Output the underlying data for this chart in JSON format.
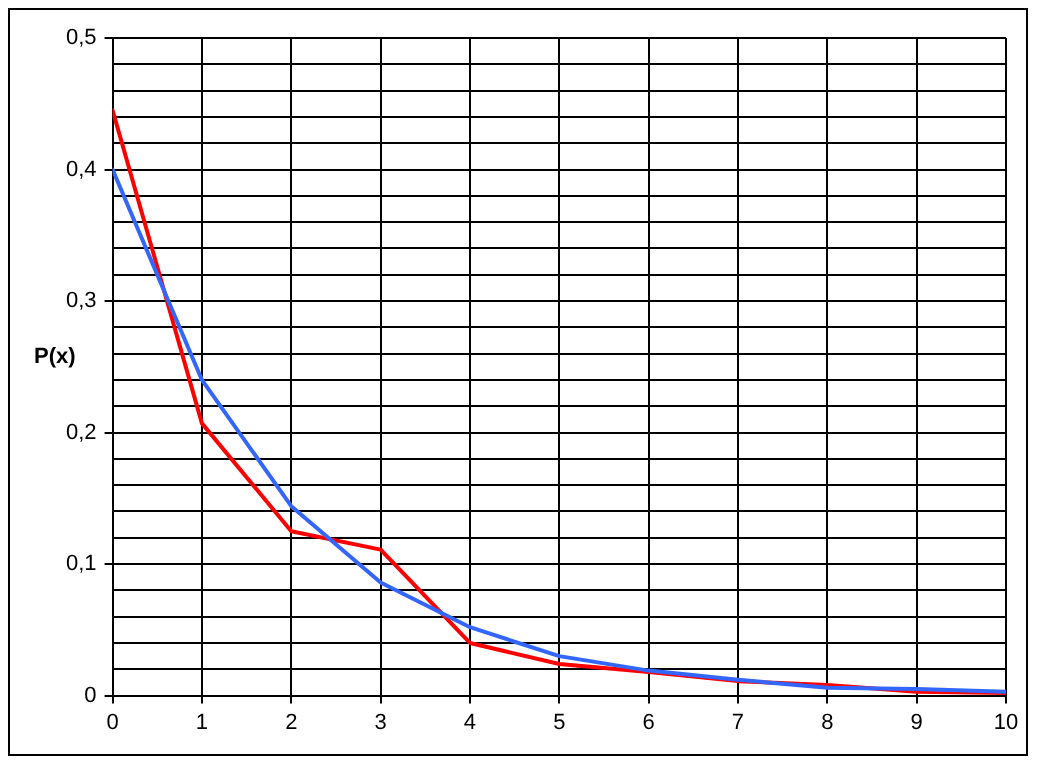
{
  "chart_data": {
    "type": "line",
    "ylabel": "P(x)",
    "x": [
      0,
      1,
      2,
      3,
      4,
      5,
      6,
      7,
      8,
      9,
      10
    ],
    "series": [
      {
        "color": "#3366ff",
        "values": [
          0.4,
          0.24,
          0.144,
          0.086,
          0.052,
          0.03,
          0.019,
          0.012,
          0.006,
          0.005,
          0.003
        ]
      },
      {
        "color": "#ff0000",
        "values": [
          0.445,
          0.207,
          0.125,
          0.111,
          0.04,
          0.024,
          0.018,
          0.011,
          0.008,
          0.003,
          0.002
        ]
      }
    ],
    "xlim": [
      0,
      10
    ],
    "xticks": [
      0,
      1,
      2,
      3,
      4,
      5,
      6,
      7,
      8,
      9,
      10
    ],
    "ylim": [
      0,
      0.5
    ],
    "yticks": [
      {
        "value": 0,
        "label": "0"
      },
      {
        "value": 0.02,
        "label": null
      },
      {
        "value": 0.04,
        "label": null
      },
      {
        "value": 0.06,
        "label": null
      },
      {
        "value": 0.08,
        "label": null
      },
      {
        "value": 0.1,
        "label": "0,1"
      },
      {
        "value": 0.12,
        "label": null
      },
      {
        "value": 0.14,
        "label": null
      },
      {
        "value": 0.16,
        "label": null
      },
      {
        "value": 0.18,
        "label": null
      },
      {
        "value": 0.2,
        "label": "0,2"
      },
      {
        "value": 0.22,
        "label": null
      },
      {
        "value": 0.24,
        "label": null
      },
      {
        "value": 0.26,
        "label": null
      },
      {
        "value": 0.28,
        "label": null
      },
      {
        "value": 0.3,
        "label": "0,3"
      },
      {
        "value": 0.32,
        "label": null
      },
      {
        "value": 0.34,
        "label": null
      },
      {
        "value": 0.36,
        "label": null
      },
      {
        "value": 0.38,
        "label": null
      },
      {
        "value": 0.4,
        "label": "0,4"
      },
      {
        "value": 0.42,
        "label": null
      },
      {
        "value": 0.44,
        "label": null
      },
      {
        "value": 0.46,
        "label": null
      },
      {
        "value": 0.48,
        "label": null
      },
      {
        "value": 0.5,
        "label": "0,5"
      }
    ],
    "grid": true,
    "marker": "none",
    "line_style": "solid"
  }
}
